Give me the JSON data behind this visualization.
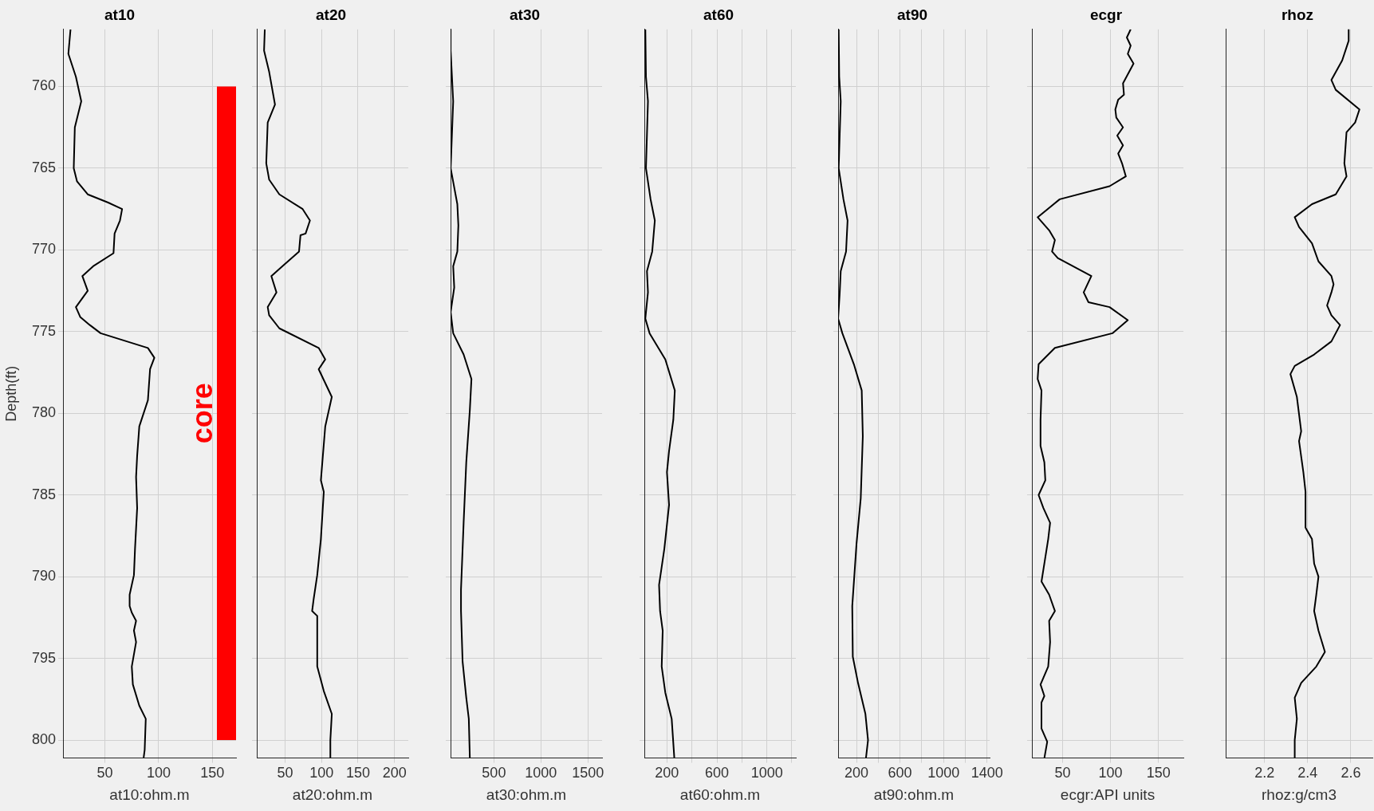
{
  "chart_data": [
    {
      "type": "line",
      "title": "at10",
      "xlabel": "at10:ohm.m",
      "ylabel": "Depth(ft)",
      "xlim": [
        11,
        172
      ],
      "xticks": [
        50,
        100,
        150
      ],
      "ylim": [
        801.1,
        756.5
      ],
      "yticks": [
        760,
        765,
        770,
        775,
        780,
        785,
        790,
        795,
        800
      ],
      "grid": true,
      "legend": false,
      "marker": "none",
      "bands": [
        {
          "axis": "y",
          "from": 760,
          "to": 800,
          "label": "core",
          "color": "#ff0000"
        }
      ],
      "series": [
        {
          "color": "#000000",
          "x": [
            18,
            16,
            23,
            28,
            22,
            21,
            24,
            34,
            53,
            66,
            64,
            59,
            58,
            39,
            29,
            34,
            23,
            27,
            36,
            46,
            90,
            96,
            92,
            90,
            82,
            80,
            79,
            80,
            78,
            77,
            73,
            73,
            75,
            79,
            77,
            79,
            75,
            76,
            82,
            88,
            87,
            86
          ],
          "values": [
            756.5,
            758.0,
            759.4,
            760.9,
            762.5,
            765.0,
            765.8,
            766.6,
            767.1,
            767.5,
            768.2,
            769.0,
            770.2,
            771.0,
            771.6,
            772.5,
            773.5,
            774.1,
            774.6,
            775.1,
            776.0,
            776.6,
            777.3,
            779.2,
            780.8,
            782.6,
            783.9,
            785.8,
            788.3,
            789.9,
            791.1,
            791.8,
            792.2,
            792.7,
            793.3,
            794.0,
            795.5,
            796.6,
            797.9,
            798.7,
            800.6,
            801.1
          ]
        }
      ]
    },
    {
      "type": "line",
      "title": "at20",
      "xlabel": "at20:ohm.m",
      "xlim": [
        11,
        219
      ],
      "xticks": [
        50,
        100,
        150,
        200
      ],
      "ylim": [
        801.1,
        756.5
      ],
      "yticks": [
        760,
        765,
        770,
        775,
        780,
        785,
        790,
        795,
        800
      ],
      "tick_labels": "x",
      "grid": true,
      "legend": false,
      "marker": "none",
      "series": [
        {
          "color": "#000000",
          "x": [
            22,
            21,
            28,
            36,
            26,
            24,
            28,
            42,
            74,
            84,
            78,
            71,
            69,
            46,
            31,
            38,
            26,
            28,
            42,
            96,
            105,
            96,
            114,
            105,
            101,
            99,
            103,
            99,
            94,
            89,
            87,
            94,
            94,
            103,
            114,
            112,
            112
          ],
          "values": [
            756.5,
            757.8,
            759.1,
            761.1,
            762.2,
            764.7,
            765.7,
            766.6,
            767.5,
            768.2,
            769.0,
            769.1,
            770.1,
            771.0,
            771.6,
            772.6,
            773.5,
            774.0,
            774.8,
            776.0,
            776.7,
            777.3,
            779.0,
            780.8,
            783.0,
            784.1,
            784.8,
            787.7,
            789.9,
            791.4,
            792.1,
            792.4,
            795.5,
            797.0,
            798.4,
            800.0,
            801.1
          ]
        }
      ]
    },
    {
      "type": "line",
      "title": "at30",
      "xlabel": "at30:ohm.m",
      "xlim": [
        39,
        1650
      ],
      "xticks": [
        500,
        1000,
        1500
      ],
      "ylim": [
        801.1,
        756.5
      ],
      "yticks": [
        760,
        765,
        770,
        775,
        780,
        785,
        790,
        795,
        800
      ],
      "tick_labels": "x",
      "grid": true,
      "legend": false,
      "marker": "none",
      "series": [
        {
          "color": "#000000",
          "x": [
            40,
            40,
            67,
            40,
            111,
            122,
            111,
            67,
            78,
            40,
            67,
            178,
            261,
            244,
            206,
            178,
            150,
            150,
            167,
            206,
            233,
            244
          ],
          "values": [
            756.5,
            757.8,
            760.9,
            765.0,
            767.2,
            768.5,
            770.1,
            771.0,
            772.3,
            773.8,
            775.1,
            776.4,
            777.9,
            779.8,
            783.0,
            786.7,
            790.8,
            792.1,
            795.2,
            797.4,
            798.7,
            801.1
          ]
        }
      ]
    },
    {
      "type": "line",
      "title": "at60",
      "xlabel": "at60:ohm.m",
      "xlim": [
        19,
        1232
      ],
      "xticks": [
        200,
        {
          "value": 400,
          "label": null
        },
        600,
        {
          "value": 800,
          "label": null
        },
        1000,
        {
          "value": 1200,
          "label": null
        }
      ],
      "ylim": [
        801.1,
        756.5
      ],
      "yticks": [
        760,
        765,
        770,
        775,
        780,
        785,
        790,
        795,
        800
      ],
      "tick_labels": "x",
      "grid": true,
      "legend": false,
      "marker": "none",
      "series": [
        {
          "color": "#000000",
          "x": [
            27,
            32,
            48,
            32,
            69,
            103,
            82,
            40,
            48,
            27,
            61,
            187,
            263,
            251,
            217,
            200,
            217,
            179,
            137,
            145,
            166,
            158,
            187,
            238,
            259
          ],
          "values": [
            756.5,
            759.4,
            760.9,
            765.0,
            766.9,
            768.2,
            770.1,
            771.3,
            772.6,
            774.2,
            775.1,
            776.7,
            778.6,
            780.4,
            782.3,
            783.6,
            785.6,
            788.3,
            790.5,
            792.1,
            793.3,
            795.5,
            797.1,
            798.7,
            801.1
          ]
        }
      ]
    },
    {
      "type": "line",
      "title": "at90",
      "xlabel": "at90:ohm.m",
      "xlim": [
        31,
        1424
      ],
      "xticks": [
        200,
        {
          "value": 400,
          "label": null
        },
        600,
        {
          "value": 800,
          "label": null
        },
        1000,
        {
          "value": 1200,
          "label": null
        },
        1400
      ],
      "ylim": [
        801.1,
        756.5
      ],
      "yticks": [
        760,
        765,
        770,
        775,
        780,
        785,
        790,
        795,
        800
      ],
      "tick_labels": "x",
      "grid": true,
      "legend": false,
      "marker": "none",
      "series": [
        {
          "color": "#000000",
          "x": [
            36,
            41,
            55,
            36,
            80,
            118,
            104,
            55,
            46,
            31,
            70,
            176,
            248,
            258,
            239,
            200,
            161,
            166,
            214,
            282,
            306,
            287
          ],
          "values": [
            756.5,
            759.4,
            760.9,
            765.0,
            766.9,
            768.2,
            770.1,
            771.3,
            772.6,
            774.2,
            775.1,
            777.0,
            778.6,
            781.4,
            785.2,
            788.0,
            791.8,
            794.9,
            796.5,
            798.4,
            800.0,
            801.1
          ]
        }
      ]
    },
    {
      "type": "line",
      "title": "ecgr",
      "xlabel": "ecgr:API units",
      "xlim": [
        18,
        176
      ],
      "xticks": [
        50,
        100,
        150
      ],
      "ylim": [
        801.1,
        756.5
      ],
      "yticks": [
        760,
        765,
        770,
        775,
        780,
        785,
        790,
        795,
        800
      ],
      "tick_labels": "x",
      "grid": true,
      "legend": false,
      "marker": "none",
      "series": [
        {
          "color": "#000000",
          "x": [
            121,
            117,
            121,
            118,
            124,
            113,
            114,
            108,
            105,
            106,
            113,
            107,
            113,
            108,
            112,
            116,
            99,
            47,
            24,
            36,
            42,
            39,
            45,
            80,
            72,
            77,
            99,
            118,
            102,
            42,
            25,
            24,
            28,
            27,
            27,
            31,
            32,
            25,
            30,
            37,
            35,
            28,
            36,
            42,
            36,
            37,
            35,
            27,
            31,
            28,
            28,
            34,
            31
          ],
          "values": [
            756.5,
            757.0,
            757.5,
            758.0,
            758.6,
            759.8,
            760.5,
            760.8,
            761.4,
            761.9,
            762.5,
            763.0,
            763.6,
            764.1,
            764.7,
            765.5,
            766.1,
            766.9,
            768.0,
            768.8,
            769.4,
            770.1,
            770.5,
            771.6,
            772.6,
            773.2,
            773.5,
            774.3,
            775.1,
            776.0,
            777.0,
            777.9,
            778.6,
            780.4,
            782.0,
            783.0,
            784.1,
            785.0,
            785.8,
            786.7,
            787.7,
            790.3,
            791.1,
            792.1,
            792.7,
            794.0,
            795.5,
            796.6,
            797.3,
            797.7,
            799.3,
            800.1,
            801.1
          ]
        }
      ]
    },
    {
      "type": "line",
      "title": "rhoz",
      "xlabel": "rhoz:g/cm3",
      "xlim": [
        2.02,
        2.7
      ],
      "xticks": [
        2.2,
        2.4,
        2.6
      ],
      "ylim": [
        801.1,
        756.5
      ],
      "yticks": [
        760,
        765,
        770,
        775,
        780,
        785,
        790,
        795,
        800
      ],
      "tick_labels": "x",
      "grid": true,
      "legend": false,
      "marker": "none",
      "series": [
        {
          "color": "#000000",
          "x": [
            2.59,
            2.59,
            2.56,
            2.51,
            2.53,
            2.64,
            2.62,
            2.58,
            2.57,
            2.58,
            2.53,
            2.42,
            2.34,
            2.36,
            2.42,
            2.45,
            2.51,
            2.52,
            2.51,
            2.49,
            2.51,
            2.55,
            2.51,
            2.43,
            2.34,
            2.32,
            2.35,
            2.37,
            2.36,
            2.38,
            2.39,
            2.39,
            2.42,
            2.43,
            2.45,
            2.44,
            2.43,
            2.45,
            2.48,
            2.44,
            2.37,
            2.34,
            2.35,
            2.34,
            2.34
          ],
          "values": [
            756.5,
            757.2,
            758.4,
            759.6,
            760.2,
            761.4,
            762.2,
            762.8,
            764.7,
            765.5,
            766.6,
            767.2,
            768.0,
            768.6,
            769.6,
            770.7,
            771.6,
            772.1,
            772.6,
            773.4,
            774.0,
            774.6,
            775.6,
            776.4,
            777.1,
            777.6,
            779.0,
            781.1,
            781.7,
            783.6,
            784.8,
            787.0,
            787.7,
            789.2,
            790.0,
            791.1,
            792.1,
            793.3,
            794.6,
            795.5,
            796.5,
            797.4,
            798.7,
            800.0,
            801.1
          ]
        }
      ]
    }
  ]
}
